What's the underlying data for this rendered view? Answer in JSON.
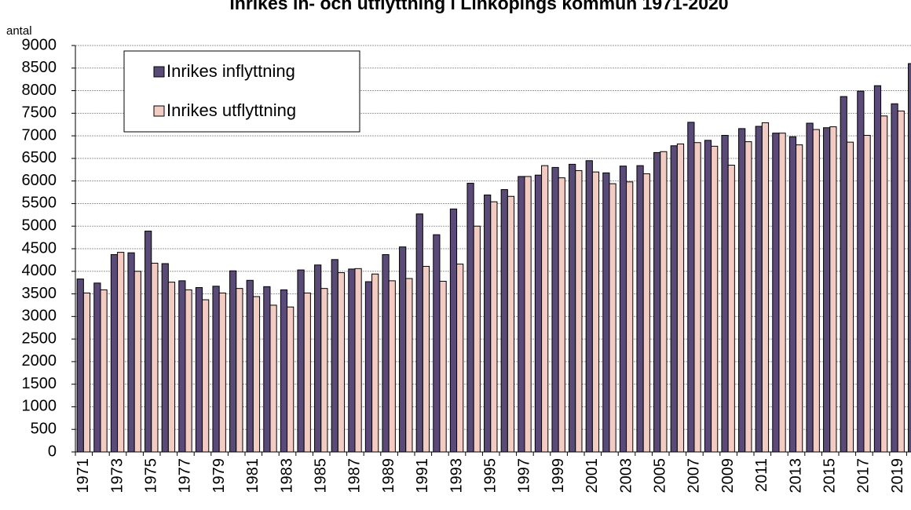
{
  "chart_data": {
    "type": "bar",
    "title": "Inrikes in- och utflyttning i Linköpings kommun 1971-2020",
    "y_label": "antal",
    "categories": [
      "1971",
      null,
      "1973",
      null,
      "1975",
      null,
      "1977",
      null,
      "1979",
      null,
      "1981",
      null,
      "1983",
      null,
      "1985",
      null,
      "1987",
      null,
      "1989",
      null,
      "1991",
      null,
      "1993",
      null,
      "1995",
      null,
      "1997",
      null,
      "1999",
      null,
      "2001",
      null,
      "2003",
      null,
      "2005",
      null,
      "2007",
      null,
      "2009",
      null,
      "2011",
      null,
      "2013",
      null,
      "2015",
      null,
      "2017",
      null,
      "2019",
      null
    ],
    "series": [
      {
        "name": "Inrikes inflyttning",
        "color": "#594a78",
        "values": [
          3830,
          3740,
          4370,
          4410,
          4890,
          4170,
          3790,
          3640,
          3670,
          4010,
          3800,
          3660,
          3590,
          4030,
          4140,
          4260,
          4050,
          3770,
          4370,
          4540,
          5270,
          4810,
          5380,
          5950,
          5690,
          5810,
          6100,
          6130,
          6300,
          6370,
          6450,
          6180,
          6330,
          6340,
          6630,
          6780,
          7300,
          6900,
          7010,
          7160,
          7210,
          7060,
          6980,
          7280,
          7180,
          7870,
          7990,
          8110,
          7710,
          8600
        ]
      },
      {
        "name": "Inrikes utflyttning",
        "color": "#f2cbc3",
        "values": [
          3520,
          3590,
          4420,
          4000,
          4180,
          3760,
          3590,
          3370,
          3520,
          3620,
          3440,
          3250,
          3210,
          3520,
          3620,
          3970,
          4060,
          3940,
          3790,
          3840,
          4110,
          3780,
          4160,
          5000,
          5540,
          5660,
          6100,
          6340,
          6070,
          6230,
          6200,
          5940,
          5980,
          6160,
          6650,
          6820,
          6850,
          6770,
          6350,
          6870,
          7290,
          7060,
          6800,
          7140,
          7200,
          6860,
          7010,
          7440,
          7550,
          null
        ]
      }
    ],
    "ylim": [
      0,
      9000
    ],
    "yticks": [
      0,
      500,
      1000,
      1500,
      2000,
      2500,
      3000,
      3500,
      4000,
      4500,
      5000,
      5500,
      6000,
      6500,
      7000,
      7500,
      8000,
      8500,
      9000
    ],
    "grid": true,
    "legend": "top-left"
  }
}
